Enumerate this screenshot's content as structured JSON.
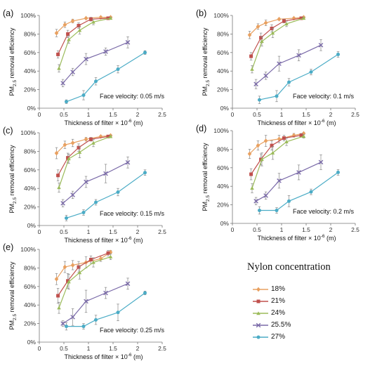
{
  "legend": {
    "title": "Nylon concentration",
    "items": [
      {
        "label": "18%",
        "color": "#e8a060",
        "marker": "diamond"
      },
      {
        "label": "21%",
        "color": "#c0504d",
        "marker": "square"
      },
      {
        "label": "24%",
        "color": "#9bbb59",
        "marker": "triangle"
      },
      {
        "label": "25.5%",
        "color": "#7a6aa8",
        "marker": "x"
      },
      {
        "label": "27%",
        "color": "#4bacc6",
        "marker": "star"
      }
    ]
  },
  "chart_data": [
    {
      "type": "line",
      "panel_label": "(a)",
      "annotation": "Face velocity: 0.05 m/s",
      "xlabel": "Thickness of filter × 10⁻⁶ (m)",
      "ylabel": "PM2.5 removal efficiency",
      "xlim": [
        0,
        2.5
      ],
      "ylim": [
        0,
        100
      ],
      "xticks": [
        "0",
        "0.5",
        "1",
        "1.5",
        "2",
        "2.5"
      ],
      "yticks": [
        "0%",
        "20%",
        "40%",
        "60%",
        "80%",
        "100%"
      ],
      "series": [
        {
          "name": "18%",
          "x": [
            0.35,
            0.52,
            0.68,
            0.95,
            1.25,
            1.45
          ],
          "y": [
            81,
            90,
            94,
            97,
            98,
            98
          ],
          "err": [
            4,
            3,
            2,
            1,
            1,
            1
          ]
        },
        {
          "name": "21%",
          "x": [
            0.38,
            0.58,
            0.8,
            1.05,
            1.4
          ],
          "y": [
            58,
            80,
            89,
            96,
            97
          ],
          "err": [
            4,
            4,
            3,
            2,
            1
          ]
        },
        {
          "name": "24%",
          "x": [
            0.4,
            0.6,
            0.82,
            1.1,
            1.45
          ],
          "y": [
            43,
            74,
            84,
            93,
            97
          ],
          "err": [
            4,
            4,
            4,
            3,
            1
          ]
        },
        {
          "name": "25.5%",
          "x": [
            0.48,
            0.68,
            0.95,
            1.35,
            1.8
          ],
          "y": [
            27,
            39,
            53,
            61,
            71
          ],
          "err": [
            4,
            4,
            6,
            4,
            6
          ]
        },
        {
          "name": "27%",
          "x": [
            0.55,
            0.9,
            1.15,
            1.6,
            2.15
          ],
          "y": [
            7,
            14,
            29,
            42,
            60
          ],
          "err": [
            2,
            5,
            4,
            4,
            2
          ]
        }
      ]
    },
    {
      "type": "line",
      "panel_label": "(b)",
      "annotation": "Face velocity: 0.1 m/s",
      "xlabel": "Thickness of filter × 10⁻⁶ (m)",
      "ylabel": "PM2.5 removal efficiency",
      "xlim": [
        0,
        2.5
      ],
      "ylim": [
        0,
        100
      ],
      "xticks": [
        "0",
        "0.5",
        "1",
        "1.5",
        "2",
        "2.5"
      ],
      "yticks": [
        "0%",
        "20%",
        "40%",
        "60%",
        "80%",
        "100%"
      ],
      "series": [
        {
          "name": "18%",
          "x": [
            0.35,
            0.52,
            0.68,
            0.95,
            1.25,
            1.45
          ],
          "y": [
            79,
            88,
            92,
            96,
            97,
            98
          ],
          "err": [
            4,
            3,
            3,
            1,
            1,
            1
          ]
        },
        {
          "name": "21%",
          "x": [
            0.38,
            0.58,
            0.8,
            1.05,
            1.4
          ],
          "y": [
            56,
            76,
            86,
            94,
            97
          ],
          "err": [
            4,
            5,
            4,
            2,
            1
          ]
        },
        {
          "name": "24%",
          "x": [
            0.4,
            0.6,
            0.82,
            1.1,
            1.45
          ],
          "y": [
            42,
            72,
            81,
            91,
            97
          ],
          "err": [
            4,
            5,
            5,
            3,
            1
          ]
        },
        {
          "name": "25.5%",
          "x": [
            0.48,
            0.68,
            0.95,
            1.35,
            1.8
          ],
          "y": [
            26,
            35,
            48,
            57,
            68
          ],
          "err": [
            5,
            4,
            8,
            6,
            6
          ]
        },
        {
          "name": "27%",
          "x": [
            0.55,
            0.9,
            1.15,
            1.6,
            2.15
          ],
          "y": [
            9,
            13,
            28,
            39,
            58
          ],
          "err": [
            4,
            6,
            4,
            3,
            3
          ]
        }
      ]
    },
    {
      "type": "line",
      "panel_label": "(c)",
      "annotation": "Face velocity: 0.15 m/s",
      "xlabel": "Thickness of filter × 10⁻⁶ (m)",
      "ylabel": "PM2.5 removal efficiency",
      "xlim": [
        0,
        2.5
      ],
      "ylim": [
        0,
        100
      ],
      "xticks": [
        "0",
        "0.5",
        "1",
        "1.5",
        "2",
        "2.5"
      ],
      "yticks": [
        "0%",
        "20%",
        "40%",
        "60%",
        "80%",
        "100%"
      ],
      "series": [
        {
          "name": "18%",
          "x": [
            0.35,
            0.52,
            0.68,
            0.95,
            1.25,
            1.45
          ],
          "y": [
            78,
            87,
            89,
            93,
            96,
            97
          ],
          "err": [
            6,
            4,
            4,
            2,
            1,
            1
          ]
        },
        {
          "name": "21%",
          "x": [
            0.38,
            0.58,
            0.8,
            1.05,
            1.4
          ],
          "y": [
            54,
            73,
            84,
            93,
            96
          ],
          "err": [
            6,
            5,
            4,
            2,
            1
          ]
        },
        {
          "name": "24%",
          "x": [
            0.4,
            0.6,
            0.82,
            1.1,
            1.45
          ],
          "y": [
            41,
            72,
            79,
            89,
            96
          ],
          "err": [
            5,
            5,
            6,
            4,
            1
          ]
        },
        {
          "name": "25.5%",
          "x": [
            0.48,
            0.68,
            0.95,
            1.35,
            1.8
          ],
          "y": [
            24,
            33,
            47,
            56,
            68
          ],
          "err": [
            4,
            4,
            6,
            10,
            6
          ]
        },
        {
          "name": "27%",
          "x": [
            0.55,
            0.9,
            1.15,
            1.6,
            2.15
          ],
          "y": [
            8,
            14,
            25,
            36,
            57
          ],
          "err": [
            3,
            3,
            3,
            4,
            3
          ]
        }
      ]
    },
    {
      "type": "line",
      "panel_label": "(d)",
      "annotation": "Face velocity: 0.2 m/s",
      "xlabel": "Thickness of filter × 10⁻⁶ (m)",
      "ylabel": "PM2.5 removal efficiency",
      "xlim": [
        0,
        2.5
      ],
      "ylim": [
        0,
        100
      ],
      "xticks": [
        "0",
        "0.5",
        "1",
        "1.5",
        "2",
        "2.5"
      ],
      "yticks": [
        "0%",
        "20%",
        "40%",
        "60%",
        "80%",
        "100%"
      ],
      "series": [
        {
          "name": "18%",
          "x": [
            0.35,
            0.52,
            0.68,
            0.95,
            1.25,
            1.45
          ],
          "y": [
            75,
            84,
            89,
            91,
            95,
            97
          ],
          "err": [
            5,
            5,
            6,
            4,
            2,
            1
          ]
        },
        {
          "name": "21%",
          "x": [
            0.38,
            0.58,
            0.8,
            1.05,
            1.4
          ],
          "y": [
            53,
            69,
            84,
            92,
            95
          ],
          "err": [
            6,
            6,
            5,
            3,
            2
          ]
        },
        {
          "name": "24%",
          "x": [
            0.4,
            0.6,
            0.82,
            1.1,
            1.45
          ],
          "y": [
            38,
            69,
            76,
            88,
            94
          ],
          "err": [
            5,
            7,
            7,
            4,
            2
          ]
        },
        {
          "name": "25.5%",
          "x": [
            0.48,
            0.68,
            0.95,
            1.35,
            1.8
          ],
          "y": [
            24,
            30,
            46,
            55,
            66
          ],
          "err": [
            4,
            4,
            8,
            8,
            8
          ]
        },
        {
          "name": "27%",
          "x": [
            0.55,
            0.9,
            1.15,
            1.6,
            2.15
          ],
          "y": [
            14,
            14,
            24,
            34,
            55
          ],
          "err": [
            4,
            3,
            6,
            3,
            3
          ]
        }
      ]
    },
    {
      "type": "line",
      "panel_label": "(e)",
      "annotation": "Face velocity: 0.25 m/s",
      "xlabel": "Thickness of filter × 10⁻⁶ (m)",
      "ylabel": "PM2.5 removal efficiency",
      "xlim": [
        0,
        2.5
      ],
      "ylim": [
        0,
        100
      ],
      "xticks": [
        "0",
        "0.5",
        "1",
        "1.5",
        "2",
        "2.5"
      ],
      "yticks": [
        "0%",
        "20%",
        "40%",
        "60%",
        "80%",
        "100%"
      ],
      "series": [
        {
          "name": "18%",
          "x": [
            0.35,
            0.52,
            0.68,
            0.95,
            1.25,
            1.45
          ],
          "y": [
            68,
            81,
            83,
            86,
            90,
            97
          ],
          "err": [
            6,
            6,
            5,
            6,
            3,
            2
          ]
        },
        {
          "name": "21%",
          "x": [
            0.38,
            0.58,
            0.8,
            1.05,
            1.4
          ],
          "y": [
            50,
            66,
            81,
            89,
            96
          ],
          "err": [
            8,
            8,
            6,
            4,
            3
          ]
        },
        {
          "name": "24%",
          "x": [
            0.4,
            0.6,
            0.82,
            1.1,
            1.45
          ],
          "y": [
            37,
            65,
            75,
            86,
            92
          ],
          "err": [
            6,
            8,
            7,
            5,
            3
          ]
        },
        {
          "name": "25.5%",
          "x": [
            0.48,
            0.68,
            0.95,
            1.35,
            1.8
          ],
          "y": [
            20,
            27,
            44,
            53,
            63
          ],
          "err": [
            3,
            9,
            12,
            6,
            6
          ]
        },
        {
          "name": "27%",
          "x": [
            0.55,
            0.9,
            1.15,
            1.6,
            2.15
          ],
          "y": [
            17,
            17,
            24,
            32,
            53
          ],
          "err": [
            4,
            3,
            5,
            9,
            2
          ]
        }
      ]
    }
  ]
}
